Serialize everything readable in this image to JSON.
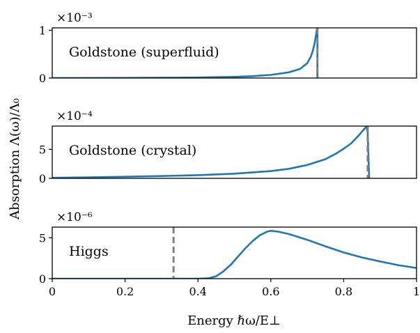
{
  "figure": {
    "ylabel": "Absorption Λ(ω)/Λ₀",
    "xlabel": "Energy ℏω/E⊥"
  },
  "chart_data": [
    {
      "type": "line",
      "annotation": "Goldstone (superfluid)",
      "exponent_label": "×10⁻³",
      "xlim": [
        0,
        1
      ],
      "ylim": [
        0,
        1.05
      ],
      "yticks": [
        0,
        1
      ],
      "xticks": [],
      "line_color": "#1f77b4",
      "marker_color": "#808080",
      "marker_x": 0.728,
      "series": [
        {
          "x": [
            0.0,
            0.2,
            0.4,
            0.5,
            0.55,
            0.6,
            0.65,
            0.68,
            0.7,
            0.71,
            0.715,
            0.72,
            0.724,
            0.726,
            0.728,
            0.728
          ],
          "values": [
            0.0,
            0.003,
            0.012,
            0.025,
            0.04,
            0.065,
            0.12,
            0.19,
            0.31,
            0.45,
            0.56,
            0.72,
            0.9,
            1.0,
            1.05,
            0.0
          ]
        }
      ]
    },
    {
      "type": "line",
      "annotation": "Goldstone (crystal)",
      "exponent_label": "×10⁻⁴",
      "xlim": [
        0,
        1
      ],
      "ylim": [
        0,
        9
      ],
      "yticks": [
        0,
        5
      ],
      "xticks": [],
      "line_color": "#1f77b4",
      "marker_color": "#808080",
      "marker_x": 0.866,
      "series": [
        {
          "x": [
            0.0,
            0.1,
            0.2,
            0.3,
            0.4,
            0.5,
            0.6,
            0.65,
            0.7,
            0.75,
            0.78,
            0.8,
            0.82,
            0.84,
            0.855,
            0.862,
            0.866,
            0.87
          ],
          "values": [
            0.1,
            0.18,
            0.28,
            0.4,
            0.55,
            0.8,
            1.25,
            1.65,
            2.3,
            3.3,
            4.3,
            5.1,
            6.0,
            7.3,
            8.4,
            8.9,
            8.0,
            0.0
          ]
        }
      ]
    },
    {
      "type": "line",
      "annotation": "Higgs",
      "exponent_label": "×10⁻⁶",
      "xlim": [
        0,
        1
      ],
      "ylim": [
        0,
        6.3
      ],
      "yticks": [
        0,
        5
      ],
      "xticks": [
        0,
        0.2,
        0.4,
        0.6,
        0.8,
        1
      ],
      "xticklabels": [
        "0",
        "0.2",
        "0.4",
        "0.6",
        "0.8",
        "1"
      ],
      "line_color": "#1f77b4",
      "marker_color": "#808080",
      "marker_x": 0.333,
      "series": [
        {
          "x": [
            0.0,
            0.3,
            0.4,
            0.43,
            0.45,
            0.47,
            0.49,
            0.51,
            0.53,
            0.55,
            0.57,
            0.59,
            0.6,
            0.62,
            0.65,
            0.7,
            0.75,
            0.8,
            0.85,
            0.9,
            0.95,
            1.0
          ],
          "values": [
            0.0,
            0.0,
            0.0,
            0.05,
            0.3,
            0.9,
            1.7,
            2.7,
            3.7,
            4.6,
            5.3,
            5.75,
            5.85,
            5.75,
            5.45,
            4.75,
            3.95,
            3.2,
            2.6,
            2.1,
            1.65,
            1.3
          ]
        }
      ]
    }
  ]
}
